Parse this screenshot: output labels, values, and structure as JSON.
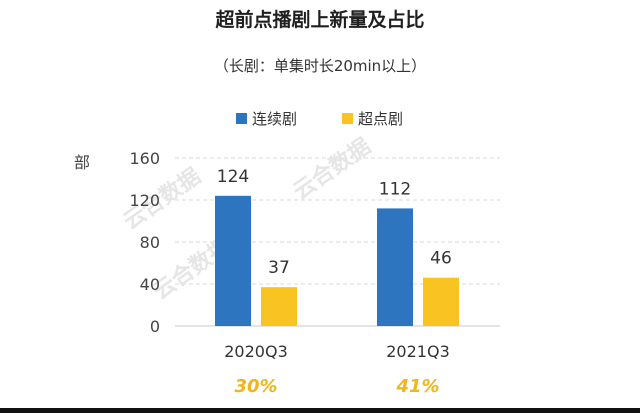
{
  "chart_data": {
    "type": "bar",
    "title": "超前点播剧上新量及占比",
    "subtitle": "（长剧：单集时长20min以上）",
    "ylabel": "部",
    "categories": [
      "2020Q3",
      "2021Q3"
    ],
    "series": [
      {
        "name": "连续剧",
        "values": [
          124,
          112
        ],
        "color": "#2E75C0"
      },
      {
        "name": "超点剧",
        "values": [
          37,
          46
        ],
        "color": "#F9C322"
      }
    ],
    "ylim": [
      0,
      160
    ],
    "yticks": [
      0,
      40,
      80,
      120,
      160
    ],
    "ratios": [
      "30%",
      "41%"
    ],
    "grid": true,
    "legend": "top-center"
  },
  "watermark": {
    "text": "云合数据"
  }
}
